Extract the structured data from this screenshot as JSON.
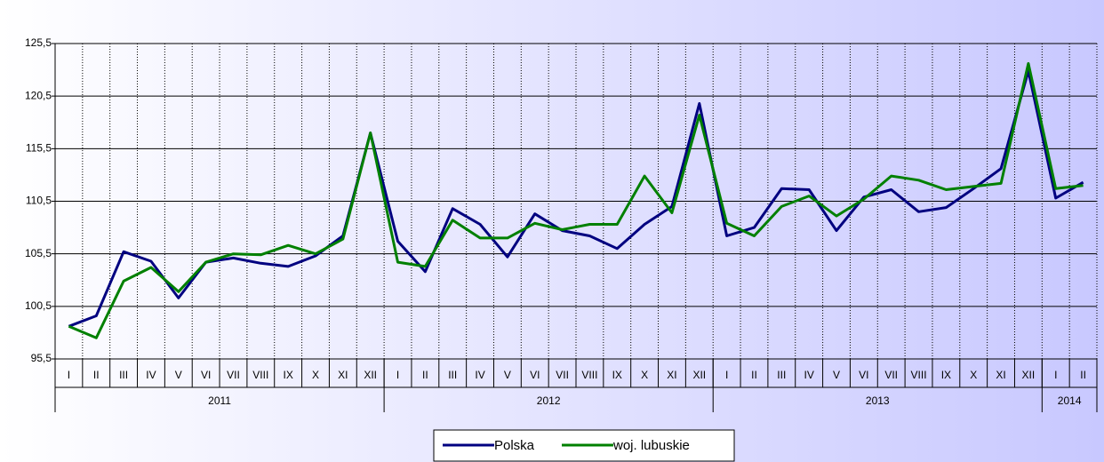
{
  "chart_data": {
    "type": "line",
    "categories": [
      "I",
      "II",
      "III",
      "IV",
      "V",
      "VI",
      "VII",
      "VIII",
      "IX",
      "X",
      "XI",
      "XII",
      "I",
      "II",
      "III",
      "IV",
      "V",
      "VI",
      "VII",
      "VIII",
      "IX",
      "X",
      "XI",
      "XII",
      "I",
      "II",
      "III",
      "IV",
      "V",
      "VI",
      "VII",
      "VIII",
      "IX",
      "X",
      "XI",
      "XII",
      "I",
      "II"
    ],
    "groups": [
      {
        "name": "2011",
        "span": 12
      },
      {
        "name": "2012",
        "span": 12
      },
      {
        "name": "2013",
        "span": 12
      },
      {
        "name": "2014",
        "span": 2
      }
    ],
    "series": [
      {
        "name": "Polska",
        "color": "#000080",
        "values": [
          98.6,
          99.6,
          105.7,
          104.8,
          101.3,
          104.7,
          105.1,
          104.6,
          104.3,
          105.3,
          107.2,
          117.0,
          106.7,
          103.8,
          109.8,
          108.3,
          105.2,
          109.3,
          107.7,
          107.2,
          106.0,
          108.3,
          110.0,
          119.8,
          107.2,
          108.0,
          111.7,
          111.6,
          107.7,
          110.9,
          111.6,
          109.5,
          109.9,
          111.7,
          113.6,
          122.9,
          110.8,
          112.3
        ]
      },
      {
        "name": "woj. lubuskie",
        "color": "#008000",
        "values": [
          98.6,
          97.5,
          102.9,
          104.2,
          101.9,
          104.7,
          105.5,
          105.4,
          106.3,
          105.5,
          106.9,
          117.0,
          104.7,
          104.3,
          108.7,
          107.0,
          107.0,
          108.4,
          107.8,
          108.3,
          108.3,
          112.9,
          109.4,
          118.7,
          108.4,
          107.2,
          110.0,
          111.0,
          109.1,
          110.7,
          112.9,
          112.5,
          111.6,
          111.9,
          112.2,
          123.6,
          111.7,
          112.0
        ]
      }
    ],
    "ylim": [
      95.5,
      125.5
    ],
    "yticks": [
      {
        "value": 95.5,
        "label": "95,5"
      },
      {
        "value": 100.5,
        "label": "100,5"
      },
      {
        "value": 105.5,
        "label": "105,5"
      },
      {
        "value": 110.5,
        "label": "110,5"
      },
      {
        "value": 115.5,
        "label": "115,5"
      },
      {
        "value": 120.5,
        "label": "120,5"
      },
      {
        "value": 125.5,
        "label": "125,5"
      }
    ],
    "grid": true,
    "legend": "bottom"
  }
}
